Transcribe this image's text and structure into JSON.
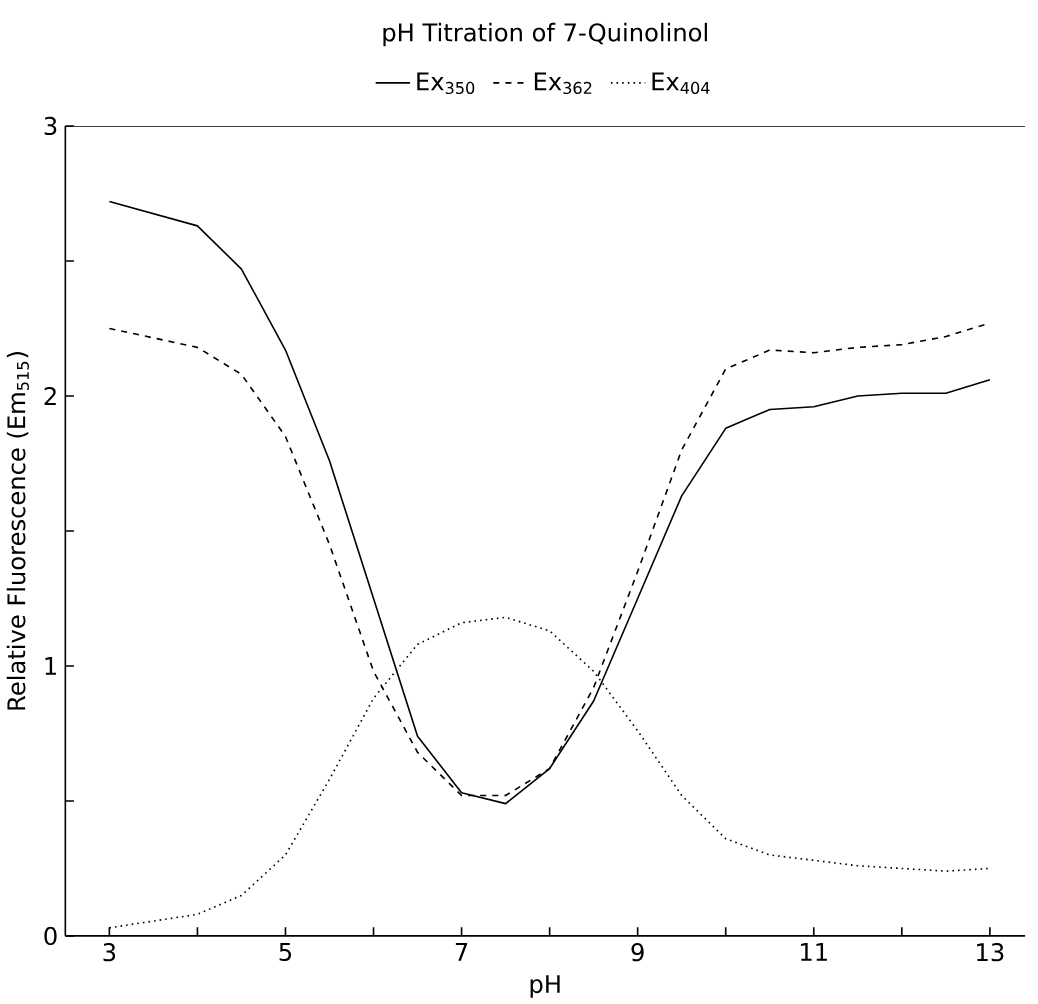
{
  "chart_data": {
    "type": "line",
    "title": "pH Titration of 7-Quinolinol",
    "xlabel": "pH",
    "ylabel": "Relative Fluorescence (Em$_{515}$)",
    "x": [
      3,
      4,
      4.5,
      5,
      5.5,
      6,
      6.5,
      7,
      7.5,
      8,
      8.5,
      9,
      9.5,
      10,
      10.5,
      11,
      11.5,
      12,
      12.5,
      13
    ],
    "series": [
      {
        "name": "Ex$_{350}$",
        "color": "#000000",
        "line_style": "solid",
        "values": [
          2.72,
          2.63,
          2.47,
          2.17,
          1.76,
          1.25,
          0.74,
          0.53,
          0.49,
          0.62,
          0.87,
          1.25,
          1.63,
          1.88,
          1.95,
          1.96,
          2.0,
          2.01,
          2.01,
          2.06
        ]
      },
      {
        "name": "Ex$_{362}$",
        "color": "#000000",
        "line_style": "dashed",
        "values": [
          2.25,
          2.18,
          2.08,
          1.85,
          1.45,
          0.98,
          0.68,
          0.52,
          0.52,
          0.62,
          0.92,
          1.35,
          1.8,
          2.1,
          2.17,
          2.16,
          2.18,
          2.19,
          2.22,
          2.27
        ]
      },
      {
        "name": "Ex$_{404}$",
        "color": "#000000",
        "line_style": "dotted",
        "values": [
          0.03,
          0.08,
          0.15,
          0.3,
          0.58,
          0.88,
          1.08,
          1.16,
          1.18,
          1.13,
          0.98,
          0.76,
          0.52,
          0.36,
          0.3,
          0.28,
          0.26,
          0.25,
          0.24,
          0.25
        ]
      }
    ],
    "xlim": [
      2.5,
      13.4
    ],
    "ylim": [
      0,
      3
    ],
    "xticks": [
      3,
      {
        "value": 4,
        "label": null
      },
      5,
      {
        "value": 6,
        "label": null
      },
      7,
      {
        "value": 8,
        "label": null
      },
      9,
      {
        "value": 10,
        "label": null
      },
      11,
      {
        "value": 12,
        "label": null
      },
      13
    ],
    "yticks": [
      0,
      {
        "value": 0.5,
        "label": null
      },
      1,
      {
        "value": 1.5,
        "label": null
      },
      2,
      {
        "value": 2.5,
        "label": null
      },
      3
    ],
    "legend": "top",
    "grid": false,
    "marker": "none"
  }
}
